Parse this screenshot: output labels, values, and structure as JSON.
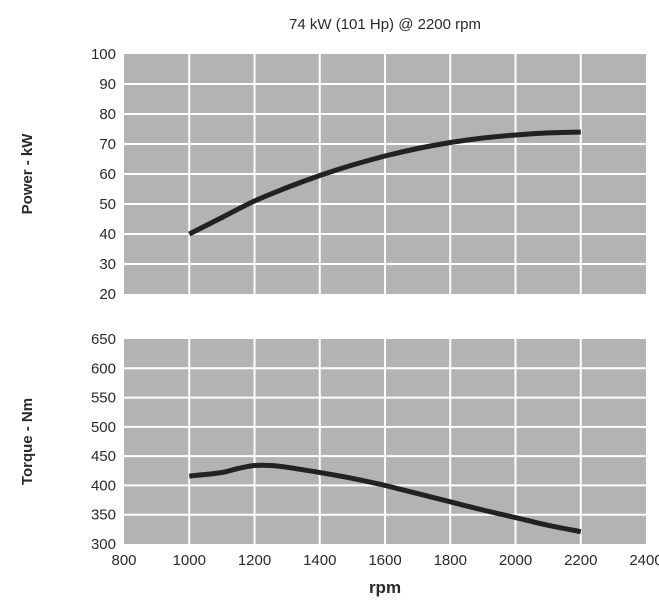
{
  "colors": {
    "plot_background": "#b3b3b3",
    "grid": "#ffffff",
    "line": "#222222",
    "text": "#2a2a2a"
  },
  "chart_data": [
    {
      "type": "line",
      "title": "74 kW (101 Hp) @ 2200 rpm",
      "xlabel": "",
      "ylabel": "Power - kW",
      "xlim": [
        800,
        2400
      ],
      "ylim": [
        20,
        100
      ],
      "x_ticks": [
        800,
        1000,
        1200,
        1400,
        1600,
        1800,
        2000,
        2200,
        2400
      ],
      "y_ticks": [
        20,
        30,
        40,
        50,
        60,
        70,
        80,
        90,
        100
      ],
      "grid": true,
      "series": [
        {
          "x": [
            1000,
            1100,
            1200,
            1300,
            1400,
            1500,
            1600,
            1700,
            1800,
            1900,
            2000,
            2100,
            2200
          ],
          "values": [
            40,
            45.5,
            51,
            55.5,
            59.5,
            63,
            66,
            68.5,
            70.5,
            72,
            73,
            73.7,
            74
          ]
        }
      ]
    },
    {
      "type": "line",
      "title": "",
      "xlabel": "rpm",
      "ylabel": "Torque - Nm",
      "xlim": [
        800,
        2400
      ],
      "ylim": [
        300,
        650
      ],
      "x_ticks": [
        800,
        1000,
        1200,
        1400,
        1600,
        1800,
        2000,
        2200,
        2400
      ],
      "y_ticks": [
        300,
        350,
        400,
        450,
        500,
        550,
        600,
        650
      ],
      "grid": true,
      "series": [
        {
          "x": [
            1000,
            1100,
            1150,
            1200,
            1250,
            1300,
            1400,
            1500,
            1600,
            1700,
            1800,
            1900,
            2000,
            2100,
            2200
          ],
          "values": [
            416,
            422,
            429,
            434,
            434,
            431,
            422,
            412,
            400,
            386,
            372,
            358,
            345,
            332,
            321
          ]
        }
      ]
    }
  ]
}
